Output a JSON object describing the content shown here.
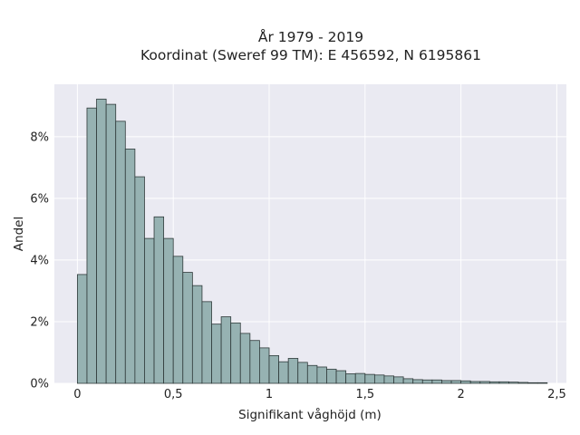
{
  "chart_data": {
    "type": "bar",
    "title": "År 1979 - 2019",
    "subtitle": "Koordinat (Sweref 99 TM): E 456592, N 6195861",
    "xlabel": "Signifikant våghöjd (m)",
    "ylabel": "Andel",
    "xlim": [
      -0.12,
      2.55
    ],
    "ylim": [
      0,
      0.097
    ],
    "grid": true,
    "bin_width": 0.05,
    "x_ticks": [
      0,
      0.5,
      1,
      1.5,
      2,
      2.5
    ],
    "x_tick_labels": [
      "0",
      "0,5",
      "1",
      "1,5",
      "2",
      "2,5"
    ],
    "y_ticks": [
      0,
      0.02,
      0.04,
      0.06,
      0.08
    ],
    "y_tick_labels": [
      "0%",
      "2%",
      "4%",
      "6%",
      "8%"
    ],
    "bin_starts": [
      0,
      0.05,
      0.1,
      0.15,
      0.2,
      0.25,
      0.3,
      0.35,
      0.4,
      0.45,
      0.5,
      0.55,
      0.6,
      0.65,
      0.7,
      0.75,
      0.8,
      0.85,
      0.9,
      0.95,
      1.0,
      1.05,
      1.1,
      1.15,
      1.2,
      1.25,
      1.3,
      1.35,
      1.4,
      1.45,
      1.5,
      1.55,
      1.6,
      1.65,
      1.7,
      1.75,
      1.8,
      1.85,
      1.9,
      1.95,
      2.0,
      2.05,
      2.1,
      2.15,
      2.2,
      2.25,
      2.3,
      2.35,
      2.4
    ],
    "values": [
      0.0353,
      0.0893,
      0.0922,
      0.0905,
      0.085,
      0.076,
      0.067,
      0.047,
      0.054,
      0.047,
      0.0412,
      0.036,
      0.0317,
      0.0265,
      0.0192,
      0.0216,
      0.0196,
      0.0162,
      0.0139,
      0.0115,
      0.009,
      0.007,
      0.0081,
      0.0068,
      0.0058,
      0.0053,
      0.0046,
      0.0041,
      0.0031,
      0.0032,
      0.0029,
      0.0027,
      0.0024,
      0.0021,
      0.0015,
      0.0012,
      0.0011,
      0.0011,
      0.0009,
      0.0009,
      0.0008,
      0.0006,
      0.0006,
      0.0005,
      0.0005,
      0.0004,
      0.0003,
      0.0002,
      0.0002
    ],
    "colors": {
      "plot_background": "#eaeaf2",
      "grid": "#ffffff",
      "bar_fill": "#96b2b2",
      "bar_edge": "#2f3a3a",
      "text": "#222222"
    }
  }
}
